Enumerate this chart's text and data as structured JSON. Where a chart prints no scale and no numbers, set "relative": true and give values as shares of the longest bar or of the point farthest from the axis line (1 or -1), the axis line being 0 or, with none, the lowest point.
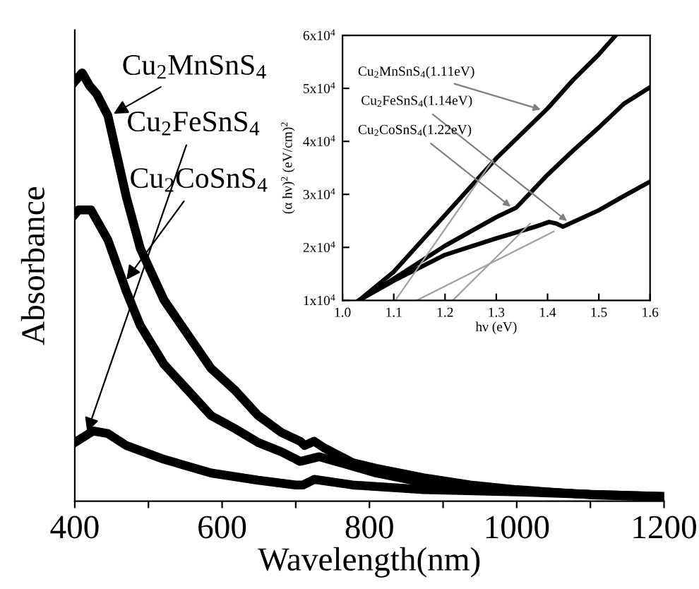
{
  "chart_data": [
    {
      "type": "line",
      "relative": true,
      "xlabel": "Wavelength(nm)",
      "ylabel": "Absorbance",
      "xlim": [
        400,
        1200
      ],
      "xticks": [
        400,
        {
          "value": 500,
          "label": null
        },
        600,
        {
          "value": 700,
          "label": null
        },
        800,
        {
          "value": 900,
          "label": null
        },
        1000,
        {
          "value": 1100,
          "label": null
        },
        1200
      ],
      "tick_labels": "x",
      "grid": false,
      "legend": false,
      "series": [
        {
          "color": "#000000",
          "x": [
            400,
            410,
            420,
            430,
            445,
            470,
            489,
            521,
            553,
            585,
            617,
            649,
            681,
            706,
            712,
            725,
            738,
            777,
            809,
            873,
            937,
            1000,
            1100,
            1200
          ],
          "values": [
            0.98,
            1.0,
            0.97,
            0.95,
            0.9,
            0.71,
            0.59,
            0.47,
            0.39,
            0.31,
            0.26,
            0.2,
            0.16,
            0.14,
            0.13,
            0.14,
            0.125,
            0.09,
            0.077,
            0.055,
            0.038,
            0.027,
            0.015,
            0.01
          ]
        },
        {
          "color": "#000000",
          "x": [
            400,
            405,
            422,
            445,
            470,
            489,
            521,
            553,
            585,
            617,
            649,
            681,
            706,
            732,
            777,
            809,
            873,
            937,
            1000,
            1100,
            1200
          ],
          "values": [
            0.67,
            0.68,
            0.68,
            0.61,
            0.49,
            0.41,
            0.32,
            0.26,
            0.2,
            0.17,
            0.137,
            0.115,
            0.093,
            0.104,
            0.082,
            0.066,
            0.044,
            0.033,
            0.025,
            0.016,
            0.011
          ]
        },
        {
          "color": "#000000",
          "x": [
            400,
            425,
            445,
            470,
            521,
            585,
            649,
            700,
            710,
            725,
            777,
            873,
            1000,
            1100,
            1200
          ],
          "values": [
            0.137,
            0.164,
            0.158,
            0.13,
            0.098,
            0.066,
            0.049,
            0.038,
            0.038,
            0.051,
            0.038,
            0.027,
            0.022,
            0.016,
            0.011
          ]
        }
      ],
      "annotations": [
        {
          "text": "Cu$_{2}$MnSnS$_{4}$",
          "x": 448,
          "y": 0.9
        },
        {
          "text": "Cu$_{2}$FeSnS$_{4}$",
          "x": 415,
          "y": 0.153
        },
        {
          "text": "Cu$_{2}$CoSnS$_{4}$",
          "x": 467,
          "y": 0.51
        }
      ]
    },
    {
      "type": "line",
      "xlabel": "hν (eV)",
      "ylabel": "(α hν)$^{2}$ (eV/cm)$^{2}$",
      "xlim": [
        1.0,
        1.6
      ],
      "xticks": [
        {
          "value": 1.0,
          "label": "1.0"
        },
        1.1,
        1.2,
        1.3,
        1.4,
        1.5,
        1.6
      ],
      "ylim": [
        10000,
        60000
      ],
      "yticks": [
        {
          "value": 10000,
          "label": "1x10$^{4}$"
        },
        {
          "value": 20000,
          "label": "2x10$^{4}$"
        },
        {
          "value": 30000,
          "label": "3x10$^{4}$"
        },
        {
          "value": 40000,
          "label": "4x10$^{4}$"
        },
        {
          "value": 50000,
          "label": "5x10$^{4}$"
        },
        {
          "value": 60000,
          "label": "6x10$^{4}$"
        }
      ],
      "grid": false,
      "legend": false,
      "series": [
        {
          "color": "#000000",
          "x": [
            1.032,
            1.1,
            1.2,
            1.3,
            1.4,
            1.449,
            1.5,
            1.533
          ],
          "values": [
            10000,
            15400,
            26100,
            36800,
            46200,
            51500,
            56400,
            60000
          ]
        },
        {
          "color": "#000000",
          "x": [
            1.032,
            1.1,
            1.2,
            1.3,
            1.339,
            1.4,
            1.449,
            1.5,
            1.549,
            1.6
          ],
          "values": [
            10000,
            14100,
            20300,
            25700,
            27500,
            33700,
            38200,
            42600,
            47100,
            50200
          ]
        },
        {
          "color": "#000000",
          "x": [
            1.032,
            1.1,
            1.2,
            1.3,
            1.376,
            1.403,
            1.417,
            1.43,
            1.5,
            1.549,
            1.6
          ],
          "values": [
            10000,
            13700,
            18600,
            21700,
            23900,
            24800,
            24500,
            23900,
            27000,
            29700,
            32400
          ]
        },
        {
          "color": "#a0a0a0",
          "x": [
            1.103,
            1.293
          ],
          "values": [
            10000,
            36400
          ]
        },
        {
          "color": "#a0a0a0",
          "x": [
            1.145,
            1.412
          ],
          "values": [
            10000,
            23000
          ]
        },
        {
          "color": "#a0a0a0",
          "x": [
            1.215,
            1.366
          ],
          "values": [
            10000,
            24500
          ]
        }
      ],
      "annotations": [
        {
          "text": "Cu$_{2}$MnSnS$_{4}$(1.11eV)",
          "x": 1.394,
          "y": 45800
        },
        {
          "text": "Cu$_{2}$FeSnS$_{4}$(1.14eV)",
          "x": 1.444,
          "y": 24500
        },
        {
          "text": "Cu$_{2}$CoSnS$_{4}$(1.22eV)",
          "x": 1.334,
          "y": 27200
        }
      ]
    }
  ]
}
